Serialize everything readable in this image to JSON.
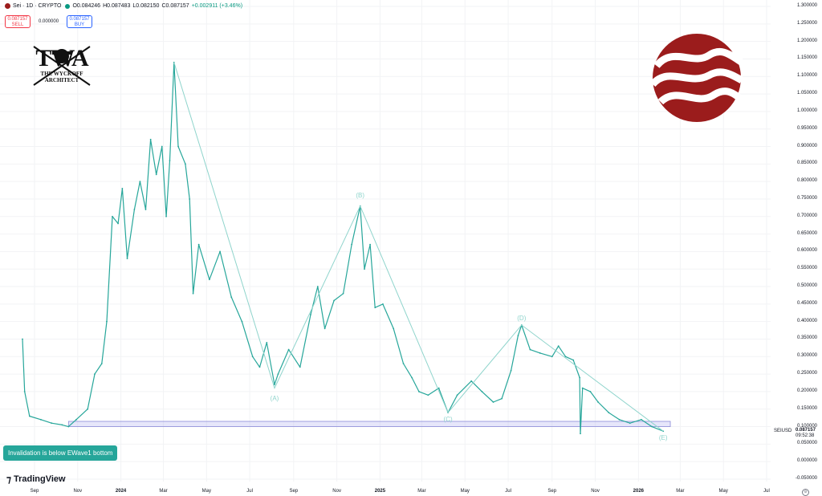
{
  "header": {
    "symbol": "Sei · 1D · CRYPTO",
    "open": "O0.084246",
    "high": "H0.087483",
    "low": "L0.082150",
    "close": "C0.087157",
    "change": "+0.002911 (+3.46%)",
    "accent_red": "#9b1c1c",
    "accent_green": "#089981"
  },
  "trade": {
    "sell_price": "0.087157",
    "sell_label": "SELL",
    "spread": "0.000000",
    "buy_price": "0.087157",
    "buy_label": "BUY"
  },
  "logo": {
    "letters": "TWA",
    "line1": "THE WYCKOFF",
    "line2": "ARCHITECT"
  },
  "annotation": "Invalidation is below EWave1 bottom",
  "brand": "TradingView",
  "price_tag": {
    "symbol": "SEIUSD",
    "value": "0.087157",
    "countdown": "09:52:38"
  },
  "chart_data": {
    "type": "line",
    "title": "",
    "xlabel": "",
    "ylabel": "",
    "x_ticks": [
      "Sep",
      "Nov",
      "2024",
      "Mar",
      "May",
      "Jul",
      "Sep",
      "Nov",
      "2025",
      "Mar",
      "May",
      "Jul",
      "Sep",
      "Nov",
      "2026",
      "Mar",
      "May",
      "Jul"
    ],
    "y_ticks": [
      "1.300000",
      "1.250000",
      "1.200000",
      "1.150000",
      "1.100000",
      "1.050000",
      "1.000000",
      "0.950000",
      "0.900000",
      "0.850000",
      "0.800000",
      "0.750000",
      "0.700000",
      "0.650000",
      "0.600000",
      "0.550000",
      "0.500000",
      "0.450000",
      "0.400000",
      "0.350000",
      "0.300000",
      "0.250000",
      "0.200000",
      "0.150000",
      "0.100000",
      "0.050000",
      "0.000000",
      "-0.050000"
    ],
    "ylim": [
      -0.05,
      1.3
    ],
    "series": [
      {
        "values": [
          [
            "2023-08-15",
            0.35
          ],
          [
            "2023-08-18",
            0.2
          ],
          [
            "2023-08-25",
            0.13
          ],
          [
            "2023-09-10",
            0.12
          ],
          [
            "2023-09-25",
            0.11
          ],
          [
            "2023-10-10",
            0.105
          ],
          [
            "2023-10-19",
            0.1
          ],
          [
            "2023-10-30",
            0.12
          ],
          [
            "2023-11-15",
            0.15
          ],
          [
            "2023-11-25",
            0.25
          ],
          [
            "2023-12-05",
            0.28
          ],
          [
            "2023-12-12",
            0.4
          ],
          [
            "2023-12-20",
            0.7
          ],
          [
            "2023-12-28",
            0.68
          ],
          [
            "2024-01-03",
            0.78
          ],
          [
            "2024-01-10",
            0.58
          ],
          [
            "2024-01-20",
            0.72
          ],
          [
            "2024-01-28",
            0.8
          ],
          [
            "2024-02-05",
            0.72
          ],
          [
            "2024-02-12",
            0.92
          ],
          [
            "2024-02-20",
            0.82
          ],
          [
            "2024-02-28",
            0.9
          ],
          [
            "2024-03-05",
            0.7
          ],
          [
            "2024-03-10",
            0.86
          ],
          [
            "2024-03-16",
            1.14
          ],
          [
            "2024-03-22",
            0.9
          ],
          [
            "2024-04-01",
            0.85
          ],
          [
            "2024-04-07",
            0.75
          ],
          [
            "2024-04-12",
            0.48
          ],
          [
            "2024-04-20",
            0.62
          ],
          [
            "2024-05-05",
            0.52
          ],
          [
            "2024-05-20",
            0.6
          ],
          [
            "2024-06-05",
            0.47
          ],
          [
            "2024-06-20",
            0.4
          ],
          [
            "2024-07-05",
            0.3
          ],
          [
            "2024-07-15",
            0.27
          ],
          [
            "2024-07-25",
            0.34
          ],
          [
            "2024-08-05",
            0.22
          ],
          [
            "2024-08-10",
            0.25
          ],
          [
            "2024-08-25",
            0.32
          ],
          [
            "2024-09-10",
            0.27
          ],
          [
            "2024-09-25",
            0.42
          ],
          [
            "2024-10-05",
            0.5
          ],
          [
            "2024-10-15",
            0.38
          ],
          [
            "2024-10-28",
            0.46
          ],
          [
            "2024-11-10",
            0.48
          ],
          [
            "2024-11-22",
            0.62
          ],
          [
            "2024-12-04",
            0.73
          ],
          [
            "2024-12-10",
            0.55
          ],
          [
            "2024-12-18",
            0.62
          ],
          [
            "2024-12-25",
            0.44
          ],
          [
            "2025-01-05",
            0.45
          ],
          [
            "2025-01-20",
            0.38
          ],
          [
            "2025-02-03",
            0.28
          ],
          [
            "2025-02-15",
            0.24
          ],
          [
            "2025-02-25",
            0.2
          ],
          [
            "2025-03-10",
            0.19
          ],
          [
            "2025-03-25",
            0.21
          ],
          [
            "2025-04-07",
            0.14
          ],
          [
            "2025-04-20",
            0.19
          ],
          [
            "2025-05-10",
            0.23
          ],
          [
            "2025-05-25",
            0.2
          ],
          [
            "2025-06-10",
            0.17
          ],
          [
            "2025-06-22",
            0.18
          ],
          [
            "2025-07-05",
            0.26
          ],
          [
            "2025-07-15",
            0.36
          ],
          [
            "2025-07-20",
            0.39
          ],
          [
            "2025-08-01",
            0.32
          ],
          [
            "2025-08-15",
            0.31
          ],
          [
            "2025-09-01",
            0.3
          ],
          [
            "2025-09-10",
            0.33
          ],
          [
            "2025-09-20",
            0.3
          ],
          [
            "2025-10-01",
            0.29
          ],
          [
            "2025-10-10",
            0.24
          ],
          [
            "2025-10-11",
            0.08
          ],
          [
            "2025-10-14",
            0.21
          ],
          [
            "2025-10-25",
            0.2
          ],
          [
            "2025-11-05",
            0.17
          ],
          [
            "2025-11-20",
            0.14
          ],
          [
            "2025-12-05",
            0.12
          ],
          [
            "2025-12-20",
            0.11
          ],
          [
            "2026-01-05",
            0.12
          ],
          [
            "2026-01-20",
            0.1
          ],
          [
            "2026-02-05",
            0.087
          ]
        ]
      }
    ],
    "wave_labels": [
      {
        "label": "(A)",
        "date": "2024-08-05",
        "value": 0.2
      },
      {
        "label": "(B)",
        "date": "2024-12-04",
        "value": 0.74
      },
      {
        "label": "(C)",
        "date": "2025-04-07",
        "value": 0.14
      },
      {
        "label": "(D)",
        "date": "2025-07-20",
        "value": 0.39
      },
      {
        "label": "(E)",
        "date": "2026-02-05",
        "value": 0.087
      }
    ],
    "wave_lines": [
      [
        [
          "2024-03-16",
          1.14
        ],
        [
          "2024-08-05",
          0.21
        ],
        [
          "2024-12-04",
          0.73
        ],
        [
          "2025-04-07",
          0.14
        ],
        [
          "2025-07-20",
          0.39
        ],
        [
          "2026-02-05",
          0.087
        ]
      ]
    ],
    "support_zone": {
      "from": "2023-10-19",
      "to": "2026-02-15",
      "low": 0.1,
      "high": 0.115
    },
    "line_color": "#26a69a",
    "wave_color": "#8fd4cc",
    "zone_color": "#b7b7f0"
  }
}
